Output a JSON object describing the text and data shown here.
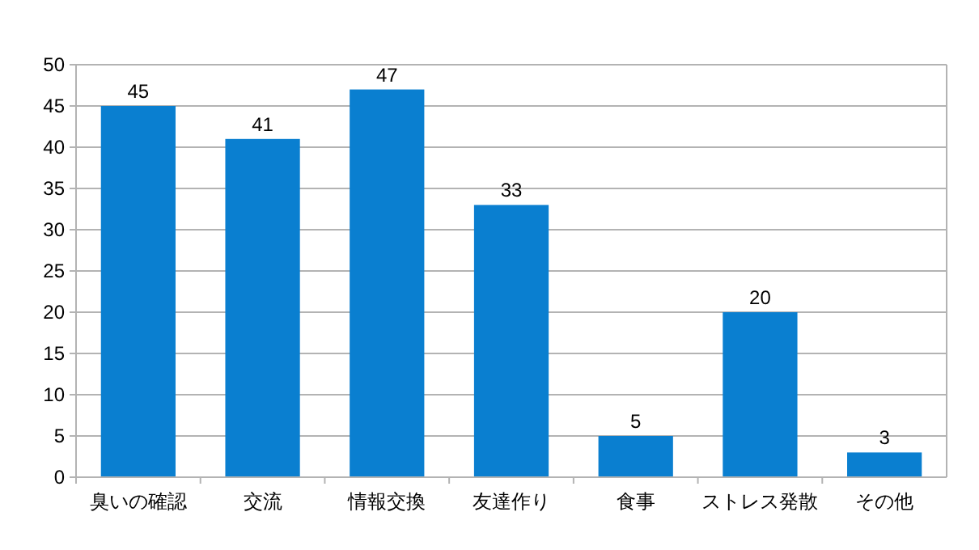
{
  "chart_data": {
    "type": "bar",
    "categories": [
      "臭いの確認",
      "交流",
      "情報交換",
      "友達作り",
      "食事",
      "ストレス発散",
      "その他"
    ],
    "values": [
      45,
      41,
      47,
      33,
      5,
      20,
      3
    ],
    "color": "#0a7fd0",
    "ylim": [
      0,
      50
    ],
    "yticks": [
      0,
      5,
      10,
      15,
      20,
      25,
      30,
      35,
      40,
      45,
      50
    ],
    "grid": "y",
    "data_labels": true
  }
}
